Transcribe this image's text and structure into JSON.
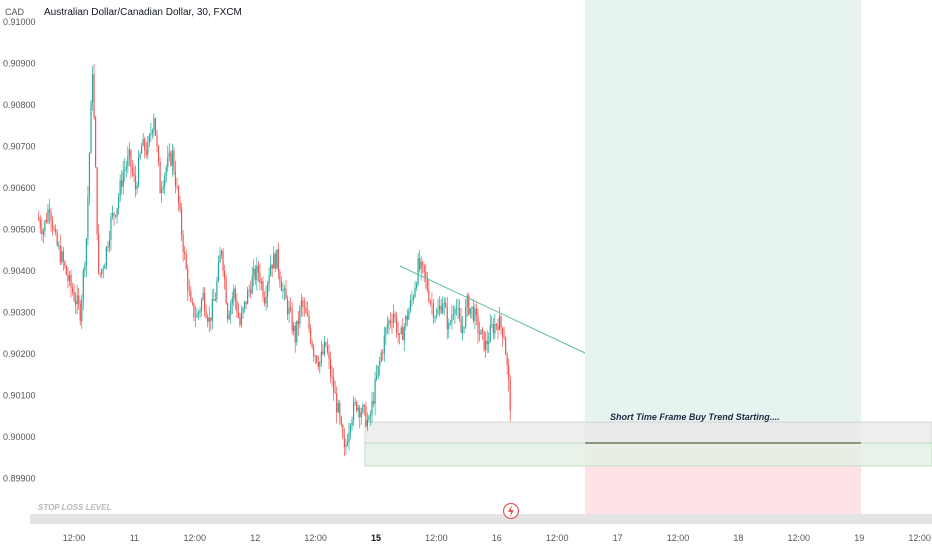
{
  "header": {
    "quote_label": "CAD",
    "title": "Australian Dollar/Canadian Dollar, 30, FXCM"
  },
  "annotations": {
    "trend_note": "Short Time Frame Buy Trend Starting....",
    "stop_loss": "STOP LOSS LEVEL"
  },
  "colors": {
    "up": "#26a69a",
    "down": "#ef5350",
    "trendline": "#5fbfa0",
    "profit_zone": "#e6f3ef",
    "loss_zone": "#fde3e5",
    "demand_zone": "#e7f3e8",
    "resistance_zone": "#ececec"
  },
  "chart_data": {
    "type": "candlestick",
    "title": "Australian Dollar/Canadian Dollar, 30, FXCM",
    "ylabel": "CAD",
    "ylim": [
      0.8986,
      0.91
    ],
    "y_ticks": [
      "0.91000",
      "0.90900",
      "0.90800",
      "0.90700",
      "0.90600",
      "0.90500",
      "0.90400",
      "0.90300",
      "0.90200",
      "0.90100",
      "0.90000",
      "0.89900"
    ],
    "x_ticks": [
      {
        "label": "12:00",
        "bold": false
      },
      {
        "label": "11",
        "bold": false
      },
      {
        "label": "12:00",
        "bold": false
      },
      {
        "label": "12",
        "bold": false
      },
      {
        "label": "12:00",
        "bold": false
      },
      {
        "label": "15",
        "bold": true
      },
      {
        "label": "12:00",
        "bold": false
      },
      {
        "label": "16",
        "bold": false
      },
      {
        "label": "12:00",
        "bold": false
      },
      {
        "label": "17",
        "bold": false
      },
      {
        "label": "12:00",
        "bold": false
      },
      {
        "label": "18",
        "bold": false
      },
      {
        "label": "12:00",
        "bold": false
      },
      {
        "label": "19",
        "bold": false
      },
      {
        "label": "12:00",
        "bold": false
      }
    ],
    "price_path": [
      0.9053,
      0.905,
      0.9056,
      0.9047,
      0.9043,
      0.9038,
      0.9034,
      0.903,
      0.9048,
      0.9089,
      0.9038,
      0.9043,
      0.9052,
      0.9056,
      0.9064,
      0.9067,
      0.906,
      0.907,
      0.9069,
      0.9078,
      0.906,
      0.9065,
      0.9068,
      0.9056,
      0.9043,
      0.9031,
      0.9029,
      0.9034,
      0.9028,
      0.9034,
      0.9046,
      0.903,
      0.9035,
      0.9027,
      0.9033,
      0.9038,
      0.904,
      0.9034,
      0.9042,
      0.9043,
      0.9035,
      0.903,
      0.9024,
      0.9032,
      0.9028,
      0.9021,
      0.9018,
      0.9022,
      0.9013,
      0.9006,
      0.8996,
      0.9005,
      0.9008,
      0.9006,
      0.9003,
      0.9012,
      0.902,
      0.9027,
      0.903,
      0.9023,
      0.9028,
      0.9033,
      0.9041,
      0.9039,
      0.9033,
      0.9029,
      0.9033,
      0.9026,
      0.9033,
      0.9025,
      0.9032,
      0.903,
      0.9025,
      0.9022,
      0.9026,
      0.9028,
      0.9025,
      0.9008
    ],
    "trendline": [
      [
        0.9044,
        0
      ],
      [
        0.90237,
        1
      ]
    ],
    "stop_loss_level": 0.8996,
    "zones": {
      "resistance": [
        0.9005,
        0.90072
      ],
      "entry_support": [
        0.89997,
        0.90023
      ],
      "target": [
        0.90072,
        0.91
      ],
      "stop": [
        0.8986,
        0.90024
      ]
    }
  }
}
